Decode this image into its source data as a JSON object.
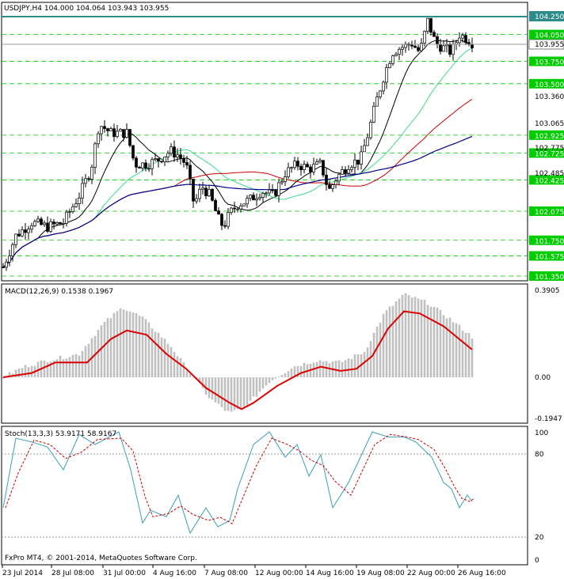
{
  "header": {
    "symbol": "USDJPY,H4",
    "open": "104.000",
    "high": "104.064",
    "low": "103.943",
    "close": "103.955"
  },
  "price_axis": {
    "labels": [
      "103.360",
      "103.065",
      "102.775",
      "102.485"
    ],
    "current_price": "103.955",
    "resistance_price": "104.250"
  },
  "levels": [
    {
      "value": "104.050"
    },
    {
      "value": "103.750"
    },
    {
      "value": "103.500"
    },
    {
      "value": "102.925"
    },
    {
      "value": "102.725"
    },
    {
      "value": "102.425"
    },
    {
      "value": "102.075"
    },
    {
      "value": "101.750"
    },
    {
      "value": "101.575"
    },
    {
      "value": "101.350"
    }
  ],
  "macd": {
    "title": "MACD(12,26,9) 0.1538 0.1967",
    "axis": [
      "0.3905",
      "0.00",
      "-0.1947"
    ]
  },
  "stoch": {
    "title": "Stoch(13,3,3) 53.9171 58.9167",
    "axis": [
      "100",
      "80",
      "20",
      "0"
    ]
  },
  "copyright": "FxPro MT4, © 2001-2014, MetaQuotes Software Corp.",
  "time_axis": [
    "23 Jul 2014",
    "28 Jul 08:00",
    "31 Jul 00:00",
    "4 Aug 16:00",
    "7 Aug 08:00",
    "12 Aug 00:00",
    "14 Aug 16:00",
    "19 Aug 08:00",
    "22 Aug 00:00",
    "26 Aug 16:00"
  ],
  "colors": {
    "bullish_candle": "#ffffff",
    "bearish_candle": "#000000",
    "level_line": "#00cc00",
    "level_label_bg": "#00cc00",
    "resistance_line": "#2e8b8b",
    "ma_fast": "#000000",
    "ma_mid": "#3cdc8c",
    "ma_slow": "#cc0000",
    "ma_slowest": "#00008b",
    "macd_hist": "#c0c0c0",
    "macd_signal": "#dd0000",
    "stoch_main": "#3a9fb5",
    "stoch_signal": "#cc0000"
  }
}
